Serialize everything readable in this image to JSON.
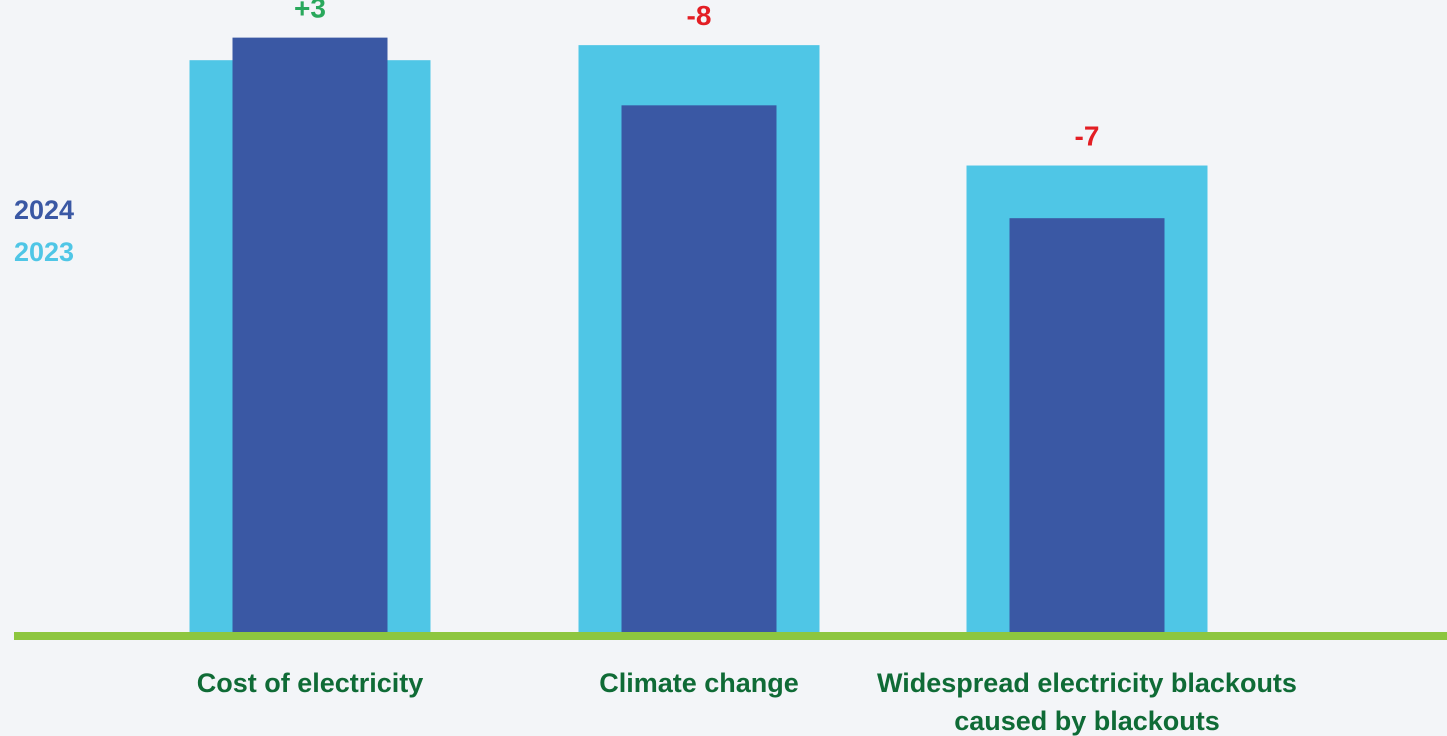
{
  "chart_data": {
    "type": "bar",
    "categories": [
      [
        "Cost of electricity"
      ],
      [
        "Climate change"
      ],
      [
        "Widespread electricity blackouts",
        "caused by blackouts"
      ]
    ],
    "series": [
      {
        "name": "2024",
        "values": [
          79,
          70,
          55
        ]
      },
      {
        "name": "2023",
        "values": [
          76,
          78,
          62
        ]
      }
    ],
    "changes": [
      "+3",
      "-8",
      "-7"
    ],
    "title": "",
    "xlabel": "",
    "ylabel": "",
    "ylim": [
      0,
      84
    ],
    "grid": false,
    "legend_position": "left"
  },
  "colors": {
    "background": "#f3f5f8",
    "series_2024": "#3a58a4",
    "series_2023": "#4fc6e6",
    "baseline": "#8dc63f",
    "category_text": "#0f6b36",
    "positive_change": "#29a85c",
    "negative_change": "#e31e24"
  }
}
